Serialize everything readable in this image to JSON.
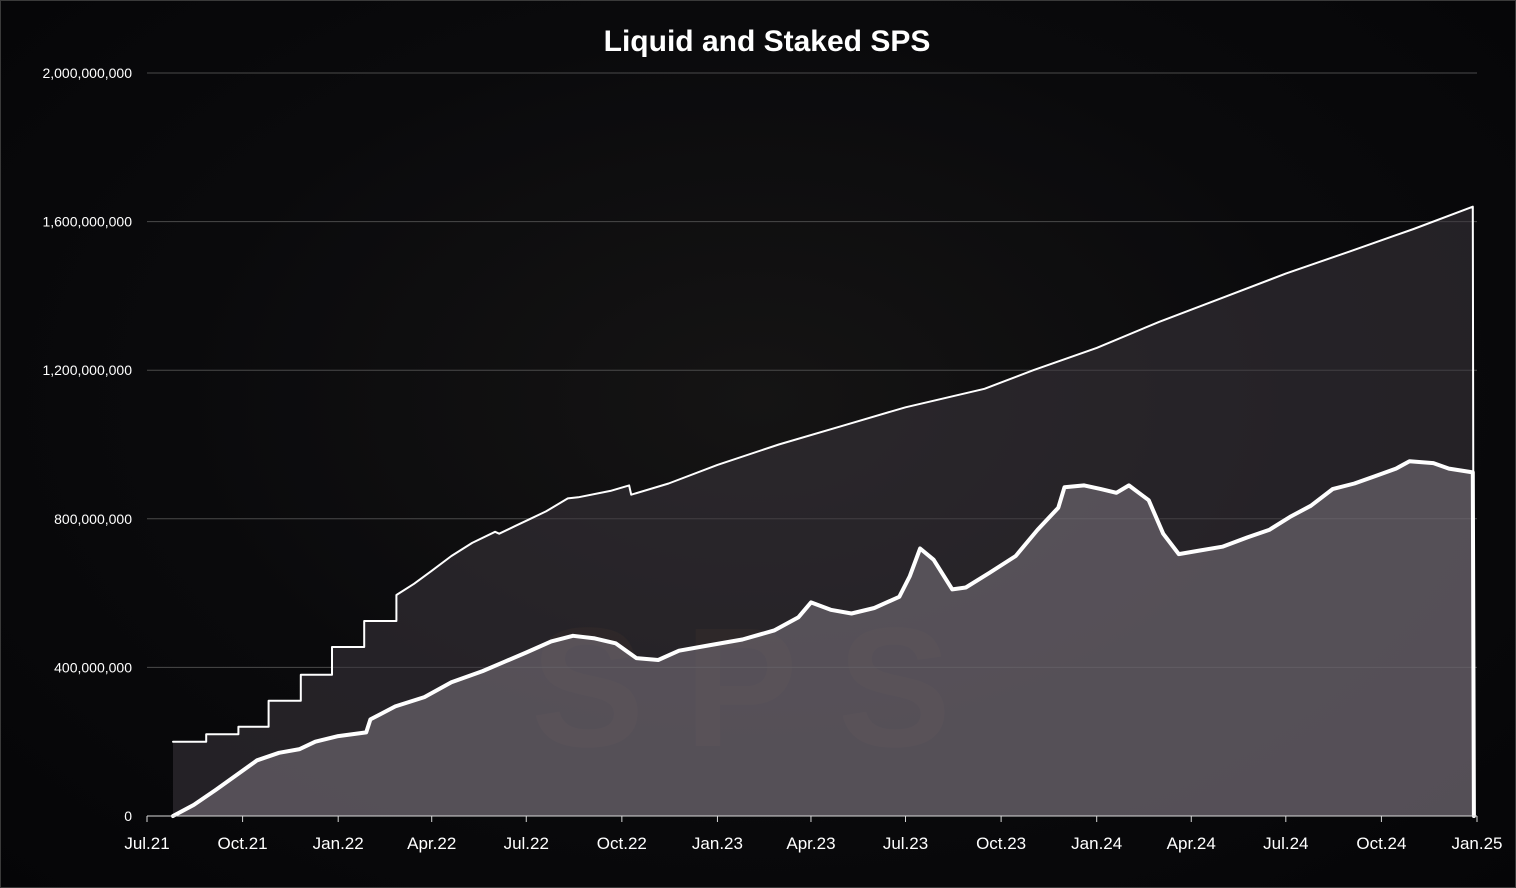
{
  "chart_data": {
    "type": "area",
    "title": "Liquid and Staked SPS",
    "xlabel": "",
    "ylabel": "",
    "ylim": [
      0,
      2000000000
    ],
    "y_ticks": [
      {
        "value": 0,
        "label": "0"
      },
      {
        "value": 400000000,
        "label": "400,000,000"
      },
      {
        "value": 800000000,
        "label": "800,000,000"
      },
      {
        "value": 1200000000,
        "label": "1,200,000,000"
      },
      {
        "value": 1600000000,
        "label": "1,600,000,000"
      },
      {
        "value": 2000000000,
        "label": "2,000,000,000"
      }
    ],
    "x_ticks": [
      "Jul.21",
      "Oct.21",
      "Jan.22",
      "Apr.22",
      "Jul.22",
      "Oct.22",
      "Jan.23",
      "Apr.23",
      "Jul.23",
      "Oct.23",
      "Jan.24",
      "Apr.24",
      "Jul.24",
      "Oct.24",
      "Jan.25"
    ],
    "grid": true,
    "legend": "none",
    "watermark": "SPS",
    "series": [
      {
        "color": "#ffffff",
        "fill": "rgba(60,55,62,0.55)",
        "points": [
          [
            "2021-07-26",
            200000000
          ],
          [
            "2021-08-27",
            200000000
          ],
          [
            "2021-08-27",
            220000000
          ],
          [
            "2021-09-27",
            220000000
          ],
          [
            "2021-09-27",
            240000000
          ],
          [
            "2021-10-26",
            240000000
          ],
          [
            "2021-10-26",
            310000000
          ],
          [
            "2021-11-26",
            310000000
          ],
          [
            "2021-11-26",
            380000000
          ],
          [
            "2021-12-26",
            380000000
          ],
          [
            "2021-12-26",
            455000000
          ],
          [
            "2022-01-26",
            455000000
          ],
          [
            "2022-01-26",
            525000000
          ],
          [
            "2022-02-26",
            525000000
          ],
          [
            "2022-02-26",
            595000000
          ],
          [
            "2022-03-15",
            625000000
          ],
          [
            "2022-04-01",
            660000000
          ],
          [
            "2022-04-20",
            700000000
          ],
          [
            "2022-05-10",
            735000000
          ],
          [
            "2022-06-01",
            765000000
          ],
          [
            "2022-06-05",
            760000000
          ],
          [
            "2022-06-20",
            780000000
          ],
          [
            "2022-07-05",
            800000000
          ],
          [
            "2022-07-20",
            820000000
          ],
          [
            "2022-08-10",
            855000000
          ],
          [
            "2022-08-20",
            858000000
          ],
          [
            "2022-09-20",
            875000000
          ],
          [
            "2022-10-08",
            890000000
          ],
          [
            "2022-10-10",
            865000000
          ],
          [
            "2022-11-15",
            895000000
          ],
          [
            "2023-01-01",
            945000000
          ],
          [
            "2023-03-01",
            1000000000
          ],
          [
            "2023-05-01",
            1050000000
          ],
          [
            "2023-07-01",
            1100000000
          ],
          [
            "2023-09-15",
            1150000000
          ],
          [
            "2023-11-01",
            1200000000
          ],
          [
            "2024-01-01",
            1260000000
          ],
          [
            "2024-03-01",
            1330000000
          ],
          [
            "2024-05-01",
            1395000000
          ],
          [
            "2024-07-01",
            1460000000
          ],
          [
            "2024-09-01",
            1520000000
          ],
          [
            "2024-11-01",
            1580000000
          ],
          [
            "2024-12-28",
            1640000000
          ],
          [
            "2024-12-29",
            0
          ]
        ]
      },
      {
        "color": "#ffffff",
        "fill": "rgba(125,118,128,0.55)",
        "points": [
          [
            "2021-07-26",
            0
          ],
          [
            "2021-08-15",
            30000000
          ],
          [
            "2021-09-05",
            70000000
          ],
          [
            "2021-09-25",
            110000000
          ],
          [
            "2021-10-15",
            150000000
          ],
          [
            "2021-11-05",
            170000000
          ],
          [
            "2021-11-25",
            180000000
          ],
          [
            "2021-12-10",
            200000000
          ],
          [
            "2022-01-01",
            215000000
          ],
          [
            "2022-01-28",
            225000000
          ],
          [
            "2022-02-01",
            260000000
          ],
          [
            "2022-02-25",
            295000000
          ],
          [
            "2022-03-25",
            320000000
          ],
          [
            "2022-04-20",
            360000000
          ],
          [
            "2022-05-20",
            390000000
          ],
          [
            "2022-06-10",
            415000000
          ],
          [
            "2022-07-01",
            440000000
          ],
          [
            "2022-07-25",
            470000000
          ],
          [
            "2022-08-15",
            485000000
          ],
          [
            "2022-09-05",
            478000000
          ],
          [
            "2022-09-25",
            465000000
          ],
          [
            "2022-10-15",
            425000000
          ],
          [
            "2022-11-05",
            420000000
          ],
          [
            "2022-11-25",
            445000000
          ],
          [
            "2022-12-25",
            460000000
          ],
          [
            "2023-01-25",
            475000000
          ],
          [
            "2023-02-25",
            500000000
          ],
          [
            "2023-03-20",
            535000000
          ],
          [
            "2023-04-01",
            575000000
          ],
          [
            "2023-04-20",
            555000000
          ],
          [
            "2023-05-10",
            545000000
          ],
          [
            "2023-06-01",
            560000000
          ],
          [
            "2023-06-25",
            590000000
          ],
          [
            "2023-07-05",
            645000000
          ],
          [
            "2023-07-15",
            720000000
          ],
          [
            "2023-07-28",
            690000000
          ],
          [
            "2023-08-15",
            610000000
          ],
          [
            "2023-08-28",
            615000000
          ],
          [
            "2023-09-20",
            655000000
          ],
          [
            "2023-10-15",
            700000000
          ],
          [
            "2023-11-05",
            770000000
          ],
          [
            "2023-11-25",
            830000000
          ],
          [
            "2023-12-01",
            885000000
          ],
          [
            "2023-12-20",
            890000000
          ],
          [
            "2024-01-05",
            880000000
          ],
          [
            "2024-01-20",
            870000000
          ],
          [
            "2024-02-01",
            890000000
          ],
          [
            "2024-02-20",
            850000000
          ],
          [
            "2024-03-05",
            760000000
          ],
          [
            "2024-03-20",
            705000000
          ],
          [
            "2024-04-10",
            715000000
          ],
          [
            "2024-05-01",
            725000000
          ],
          [
            "2024-05-25",
            750000000
          ],
          [
            "2024-06-15",
            770000000
          ],
          [
            "2024-07-05",
            805000000
          ],
          [
            "2024-07-25",
            835000000
          ],
          [
            "2024-08-15",
            880000000
          ],
          [
            "2024-09-05",
            895000000
          ],
          [
            "2024-09-25",
            915000000
          ],
          [
            "2024-10-15",
            935000000
          ],
          [
            "2024-10-28",
            955000000
          ],
          [
            "2024-11-20",
            950000000
          ],
          [
            "2024-12-05",
            935000000
          ],
          [
            "2024-12-28",
            925000000
          ],
          [
            "2024-12-29",
            0
          ]
        ]
      }
    ]
  }
}
